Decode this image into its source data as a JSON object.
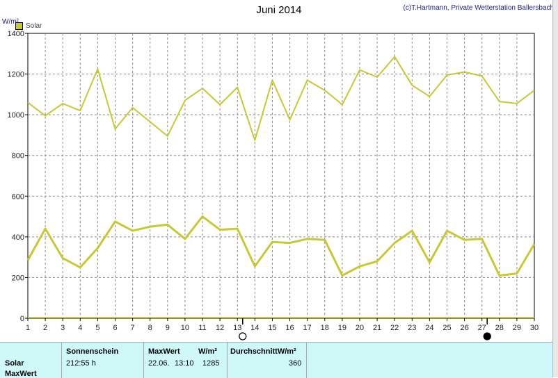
{
  "chart_data": {
    "type": "line",
    "title": "Juni 2014",
    "credit": "(c)T.Hartmann, Private Wetterstation Ballersbach",
    "ylabel": "W/m²",
    "ylim": [
      0,
      1400
    ],
    "y_ticks": [
      "0",
      "200",
      "400",
      "600",
      "800",
      "1000",
      "1200",
      "1400"
    ],
    "x": [
      1,
      2,
      3,
      4,
      5,
      6,
      7,
      8,
      9,
      10,
      11,
      12,
      13,
      14,
      15,
      16,
      17,
      18,
      19,
      20,
      21,
      22,
      23,
      24,
      25,
      26,
      27,
      28,
      29,
      30
    ],
    "x_ticks": [
      "1",
      "2",
      "3",
      "4",
      "5",
      "6",
      "7",
      "8",
      "9",
      "10",
      "11",
      "12",
      "13",
      "14",
      "15",
      "16",
      "17",
      "18",
      "19",
      "20",
      "21",
      "22",
      "23",
      "24",
      "25",
      "26",
      "27",
      "28",
      "29",
      "30"
    ],
    "legend": [
      "Solar"
    ],
    "grid": true,
    "series": [
      {
        "name": "Solar",
        "kind": "max",
        "values": [
          1060,
          995,
          1055,
          1020,
          1225,
          930,
          1035,
          965,
          895,
          1070,
          1130,
          1050,
          1135,
          875,
          1170,
          975,
          1170,
          1120,
          1050,
          1220,
          1185,
          1285,
          1145,
          1090,
          1195,
          1210,
          1190,
          1065,
          1055,
          1120
        ]
      },
      {
        "name": "Solar",
        "kind": "avg",
        "values": [
          285,
          440,
          295,
          250,
          345,
          475,
          430,
          450,
          460,
          390,
          500,
          435,
          440,
          255,
          375,
          370,
          390,
          385,
          210,
          255,
          280,
          370,
          430,
          275,
          430,
          385,
          390,
          210,
          220,
          365
        ]
      }
    ],
    "moon_markers": [
      {
        "day": 13.3,
        "phase": "full-moon"
      },
      {
        "day": 27.3,
        "phase": "new-moon"
      }
    ]
  },
  "colors": {
    "line": "#c8c832",
    "grid": "#888888",
    "axis": "#000000",
    "panel": "#cff8f8"
  },
  "table": {
    "sonnenschein_header": "Sonnenschein",
    "maxwert_header": "MaxWert",
    "unit_header": "W/m²",
    "avg_header": "DurchschnittW/m²",
    "row_labels": [
      "Solar",
      "MaxWert"
    ],
    "sonnenschein_value": "212:55 h",
    "maxwert_date": "22.06.",
    "maxwert_time": "13:10",
    "maxwert_value": "1285",
    "avg_value": "360"
  }
}
